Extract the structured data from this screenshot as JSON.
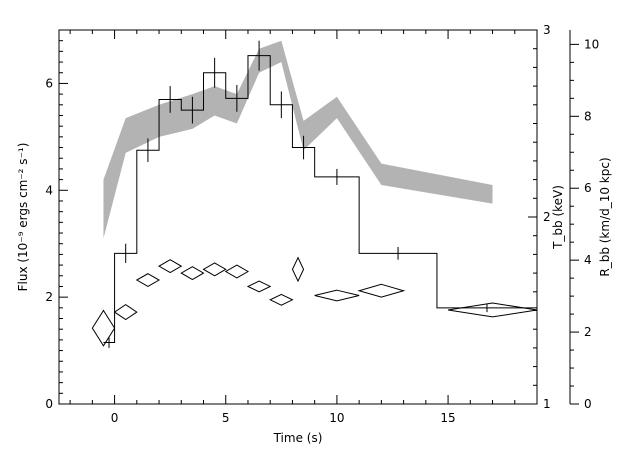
{
  "chart_data": {
    "type": "line",
    "xlabel": "Time (s)",
    "ylabel": "Flux (10⁻⁹ ergs cm⁻² s⁻¹)",
    "y2label": "T_bb (keV)",
    "y3label": "R_bb (km/d_10 kpc)",
    "xlim": [
      -2.5,
      19
    ],
    "ylim": [
      0,
      7
    ],
    "y2lim": [
      1,
      3
    ],
    "y3lim": [
      0,
      10.4
    ],
    "x_ticks": [
      "0",
      "5",
      "10",
      "15"
    ],
    "y_ticks": [
      "0",
      "2",
      "4",
      "6"
    ],
    "y2_ticks": [
      "1",
      "2",
      "3"
    ],
    "y3_ticks": [
      "0",
      "2",
      "4",
      "6",
      "8",
      "10"
    ],
    "series": [
      {
        "style": "step",
        "color": "#000000",
        "segments": [
          {
            "x0": -0.5,
            "x1": 0,
            "y": 1.15,
            "yerr": 0.1
          },
          {
            "x0": 0,
            "x1": 1,
            "y": 2.82,
            "yerr": 0.18
          },
          {
            "x0": 1,
            "x1": 2,
            "y": 4.75,
            "yerr": 0.22
          },
          {
            "x0": 2,
            "x1": 3,
            "y": 5.7,
            "yerr": 0.25
          },
          {
            "x0": 3,
            "x1": 4,
            "y": 5.5,
            "yerr": 0.25
          },
          {
            "x0": 4,
            "x1": 5,
            "y": 6.2,
            "yerr": 0.28
          },
          {
            "x0": 5,
            "x1": 6,
            "y": 5.72,
            "yerr": 0.25
          },
          {
            "x0": 6,
            "x1": 7,
            "y": 6.52,
            "yerr": 0.28
          },
          {
            "x0": 7,
            "x1": 8,
            "y": 5.6,
            "yerr": 0.25
          },
          {
            "x0": 8,
            "x1": 9,
            "y": 4.8,
            "yerr": 0.22
          },
          {
            "x0": 9,
            "x1": 11,
            "y": 4.25,
            "yerr": 0.15
          },
          {
            "x0": 11,
            "x1": 14.5,
            "y": 2.82,
            "yerr": 0.12
          },
          {
            "x0": 14.5,
            "x1": 19,
            "y": 1.8,
            "yerr": 0.08
          }
        ]
      },
      {
        "style": "band",
        "color": "#b3b3b3",
        "points": [
          {
            "x": -0.5,
            "lo": 3.1,
            "hi": 4.2
          },
          {
            "x": 0.5,
            "lo": 4.7,
            "hi": 5.35
          },
          {
            "x": 2.0,
            "lo": 5.0,
            "hi": 5.6
          },
          {
            "x": 3.5,
            "lo": 5.15,
            "hi": 5.8
          },
          {
            "x": 4.5,
            "lo": 5.4,
            "hi": 5.95
          },
          {
            "x": 5.5,
            "lo": 5.25,
            "hi": 5.8
          },
          {
            "x": 6.5,
            "lo": 6.2,
            "hi": 6.65
          },
          {
            "x": 7.5,
            "lo": 6.4,
            "hi": 6.8
          },
          {
            "x": 8.5,
            "lo": 4.75,
            "hi": 5.3
          },
          {
            "x": 10.0,
            "lo": 5.35,
            "hi": 5.75
          },
          {
            "x": 12.0,
            "lo": 4.1,
            "hi": 4.5
          },
          {
            "x": 17.0,
            "lo": 3.75,
            "hi": 4.1
          }
        ]
      },
      {
        "style": "diamonds",
        "color": "#000000",
        "points": [
          {
            "x": -0.5,
            "y": 1.42,
            "xerr": 0.5,
            "yerr": 0.33
          },
          {
            "x": 0.5,
            "y": 1.72,
            "xerr": 0.5,
            "yerr": 0.14
          },
          {
            "x": 1.5,
            "y": 2.32,
            "xerr": 0.5,
            "yerr": 0.12
          },
          {
            "x": 2.5,
            "y": 2.58,
            "xerr": 0.5,
            "yerr": 0.12
          },
          {
            "x": 3.5,
            "y": 2.45,
            "xerr": 0.5,
            "yerr": 0.12
          },
          {
            "x": 4.5,
            "y": 2.52,
            "xerr": 0.5,
            "yerr": 0.12
          },
          {
            "x": 5.5,
            "y": 2.48,
            "xerr": 0.5,
            "yerr": 0.12
          },
          {
            "x": 6.5,
            "y": 2.2,
            "xerr": 0.5,
            "yerr": 0.1
          },
          {
            "x": 7.5,
            "y": 1.95,
            "xerr": 0.5,
            "yerr": 0.1
          },
          {
            "x": 8.25,
            "y": 2.52,
            "xerr": 0.25,
            "yerr": 0.22
          },
          {
            "x": 10.0,
            "y": 2.03,
            "xerr": 1.0,
            "yerr": 0.1
          },
          {
            "x": 12.0,
            "y": 2.12,
            "xerr": 1.0,
            "yerr": 0.12
          },
          {
            "x": 17.0,
            "y": 1.76,
            "xerr": 2.0,
            "yerr": 0.13
          }
        ]
      }
    ]
  }
}
